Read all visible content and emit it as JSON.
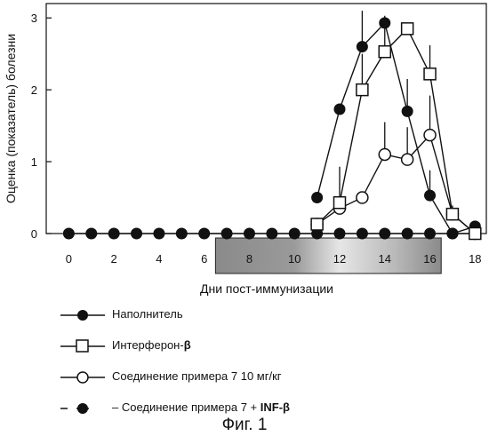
{
  "chart_data": {
    "type": "line",
    "ylabel": "Оценка (показатель) болезни",
    "xlabel": "Дни пост-иммунизации",
    "xlim": [
      -1,
      18.5
    ],
    "ylim": [
      0,
      3.2
    ],
    "xticks": [
      0,
      2,
      4,
      6,
      8,
      10,
      12,
      14,
      16,
      18
    ],
    "yticks": [
      0,
      1,
      2,
      3
    ],
    "treatment_bar": {
      "from": 6.5,
      "to": 16.5
    },
    "series": [
      {
        "name": "Наполнитель",
        "marker": "filled-circle",
        "x": [
          11,
          12,
          13,
          14,
          15,
          16,
          17,
          18
        ],
        "y": [
          0.5,
          1.73,
          2.6,
          2.93,
          1.7,
          0.53,
          0.0,
          0.1
        ],
        "err": [
          0,
          0,
          0.5,
          0,
          0.45,
          0.35,
          0,
          0
        ]
      },
      {
        "name": "Интерферон-β",
        "marker": "open-square",
        "x": [
          11,
          12,
          13,
          14,
          15,
          16,
          17,
          18
        ],
        "y": [
          0.13,
          0.43,
          2.0,
          2.53,
          2.85,
          2.22,
          0.27,
          0.0
        ],
        "err": [
          0,
          0.5,
          0.5,
          0.5,
          0,
          0.4,
          0.12,
          0
        ]
      },
      {
        "name": "Соединение примера 7 10 мг/кг",
        "marker": "open-circle",
        "x": [
          11,
          12,
          13,
          14,
          15,
          16,
          17,
          18
        ],
        "y": [
          0.13,
          0.35,
          0.5,
          1.1,
          1.03,
          1.37,
          0.27,
          0.0
        ],
        "err": [
          0,
          0,
          0,
          0.45,
          0.45,
          0.55,
          0,
          0
        ]
      },
      {
        "name": "Соединение примера 7 + INF-β",
        "marker": "filled-circle-dashed",
        "x": [
          0,
          1,
          2,
          3,
          4,
          5,
          6,
          7,
          8,
          9,
          10,
          11,
          12,
          13,
          14,
          15,
          16,
          17,
          18
        ],
        "y": [
          0,
          0,
          0,
          0,
          0,
          0,
          0,
          0,
          0,
          0,
          0,
          0,
          0,
          0,
          0,
          0,
          0,
          0,
          0
        ]
      }
    ]
  },
  "legend": [
    {
      "text": "Наполнитель",
      "bold": ""
    },
    {
      "text": "Интерферон-",
      "bold": "β"
    },
    {
      "text": "Соединение примера 7 10 мг/кг",
      "bold": ""
    },
    {
      "text": "– Соединение примера 7 + ",
      "bold": "INF-β"
    }
  ],
  "figure_title": "Фиг. 1"
}
